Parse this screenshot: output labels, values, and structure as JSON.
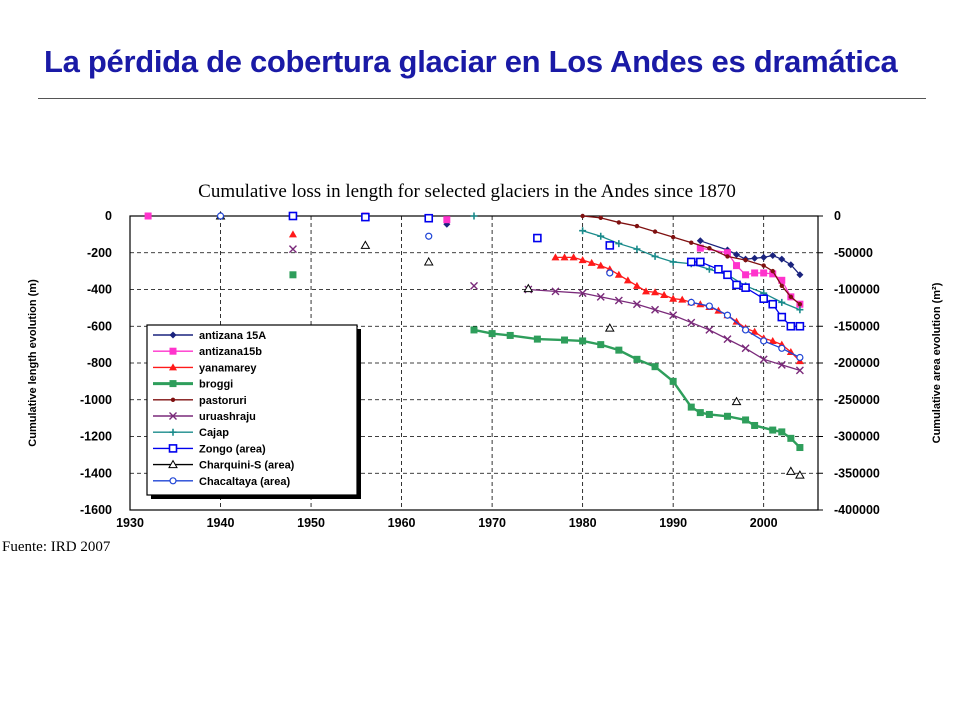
{
  "slide": {
    "title": "La pérdida de cobertura glaciar en Los Andes es dramática",
    "source": "Fuente: IRD 2007"
  },
  "chart_data": {
    "type": "line",
    "title": "Cumulative loss in length for selected glaciers in the Andes since 1870",
    "xlabel": "",
    "ylabel": "Cumulative length evolution  (m)",
    "y2label": "Cumulative area evolution (m²)",
    "xlim": [
      1930,
      2006
    ],
    "ylim": [
      -1600,
      0
    ],
    "y2lim": [
      -400000,
      0
    ],
    "x_ticks": [
      1930,
      1940,
      1950,
      1960,
      1970,
      1980,
      1990,
      2000
    ],
    "y_ticks": [
      0,
      -200,
      -400,
      -600,
      -800,
      -1000,
      -1200,
      -1400,
      -1600
    ],
    "y2_ticks": [
      "0",
      "-50000",
      "-100000",
      "-150000",
      "-200000",
      "-250000",
      "-300000",
      "-350000",
      "-400000"
    ],
    "grid": true,
    "legend_position": "bottom-left",
    "series": [
      {
        "name": "antizana 15A",
        "axis": "left",
        "color": "#1a237e",
        "marker": "diamond",
        "line": true,
        "x": [
          1932,
          1956,
          1965,
          1993,
          1996,
          1997,
          1998,
          1999,
          2000,
          2001,
          2002,
          2003,
          2004
        ],
        "y": [
          0,
          0,
          -45,
          -135,
          -185,
          -210,
          -235,
          -230,
          -225,
          -215,
          -235,
          -265,
          -320
        ]
      },
      {
        "name": "antizana15b",
        "axis": "left",
        "color": "#ff33cc",
        "marker": "square",
        "line": true,
        "x": [
          1932,
          1956,
          1965,
          1993,
          1996,
          1997,
          1998,
          1999,
          2000,
          2001,
          2002,
          2003,
          2004
        ],
        "y": [
          0,
          0,
          -20,
          -175,
          -200,
          -270,
          -320,
          -310,
          -310,
          -315,
          -350,
          -440,
          -480
        ]
      },
      {
        "name": "yanamarey",
        "axis": "left",
        "color": "#ff1a1a",
        "marker": "triangle",
        "line": true,
        "x": [
          1948,
          1977,
          1978,
          1979,
          1980,
          1981,
          1982,
          1983,
          1984,
          1985,
          1986,
          1987,
          1988,
          1989,
          1990,
          1991,
          1992,
          1993,
          1994,
          1995,
          1996,
          1997,
          1998,
          1999,
          2000,
          2001,
          2002,
          2003,
          2004
        ],
        "y": [
          -100,
          -225,
          -225,
          -225,
          -240,
          -255,
          -270,
          -290,
          -320,
          -350,
          -380,
          -410,
          -415,
          -430,
          -450,
          -455,
          -470,
          -480,
          -495,
          -515,
          -540,
          -575,
          -610,
          -630,
          -665,
          -680,
          -700,
          -740,
          -790
        ]
      },
      {
        "name": "broggi",
        "axis": "left",
        "color": "#2e9e5b",
        "marker": "square",
        "line": true,
        "x": [
          1948,
          1968,
          1970,
          1972,
          1975,
          1978,
          1980,
          1982,
          1984,
          1986,
          1988,
          1990,
          1992,
          1993,
          1994,
          1996,
          1998,
          1999,
          2001,
          2002,
          2003,
          2004
        ],
        "y": [
          -320,
          -620,
          -640,
          -650,
          -670,
          -675,
          -680,
          -700,
          -730,
          -780,
          -820,
          -900,
          -1040,
          -1070,
          -1080,
          -1090,
          -1110,
          -1140,
          -1165,
          -1175,
          -1210,
          -1260
        ]
      },
      {
        "name": "pastoruri",
        "axis": "left",
        "color": "#7f1010",
        "marker": "dot",
        "line": true,
        "x": [
          1980,
          1982,
          1984,
          1986,
          1988,
          1990,
          1992,
          1994,
          1996,
          1998,
          2000,
          2001,
          2002,
          2003,
          2004
        ],
        "y": [
          0,
          -10,
          -35,
          -55,
          -85,
          -115,
          -145,
          -175,
          -220,
          -240,
          -270,
          -300,
          -380,
          -440,
          -480
        ]
      },
      {
        "name": "uruashraju",
        "axis": "left",
        "color": "#7a2a7a",
        "marker": "x",
        "line": true,
        "x": [
          1948,
          1968,
          1974,
          1977,
          1980,
          1982,
          1984,
          1986,
          1988,
          1990,
          1992,
          1994,
          1996,
          1998,
          2000,
          2002,
          2004
        ],
        "y": [
          -180,
          -380,
          -400,
          -410,
          -420,
          -440,
          -460,
          -480,
          -510,
          -540,
          -580,
          -620,
          -670,
          -720,
          -780,
          -810,
          -840
        ]
      },
      {
        "name": "Cajap",
        "axis": "left",
        "color": "#1a8b8b",
        "marker": "plus",
        "line": true,
        "x": [
          1968,
          1980,
          1982,
          1984,
          1986,
          1988,
          1990,
          1992,
          1994,
          1996,
          1998,
          2000,
          2002,
          2004
        ],
        "y": [
          0,
          -80,
          -110,
          -150,
          -180,
          -220,
          -250,
          -260,
          -290,
          -320,
          -380,
          -420,
          -470,
          -510
        ]
      },
      {
        "name": "Zongo (area)",
        "axis": "right",
        "color": "#0000ee",
        "marker": "square-open",
        "line": true,
        "x": [
          1948,
          1956,
          1963,
          1975,
          1983,
          1992,
          1993,
          1995,
          1996,
          1997,
          1998,
          2000,
          2001,
          2002,
          2003,
          2004
        ],
        "y": [
          0,
          -1500,
          -3000,
          -30000,
          -40000,
          -62500,
          -62500,
          -72500,
          -80000,
          -93750,
          -97500,
          -112500,
          -120000,
          -137500,
          -150000,
          -150000
        ]
      },
      {
        "name": "Charquini-S (area)",
        "axis": "right",
        "color": "#000000",
        "marker": "triangle-open",
        "line": false,
        "x": [
          1940,
          1956,
          1963,
          1974,
          1983,
          1997,
          2003,
          2004
        ],
        "y": [
          0,
          -40000,
          -62500,
          -98750,
          -152500,
          -252500,
          -347500,
          -352500
        ]
      },
      {
        "name": "Chacaltaya (area)",
        "axis": "right",
        "color": "#1f45d6",
        "marker": "circle-open",
        "line": true,
        "x": [
          1940,
          1963,
          1983,
          1992,
          1994,
          1996,
          1998,
          2000,
          2002,
          2004
        ],
        "y": [
          0,
          -27500,
          -77500,
          -117500,
          -122500,
          -135000,
          -155000,
          -170000,
          -180000,
          -192500
        ]
      }
    ]
  }
}
